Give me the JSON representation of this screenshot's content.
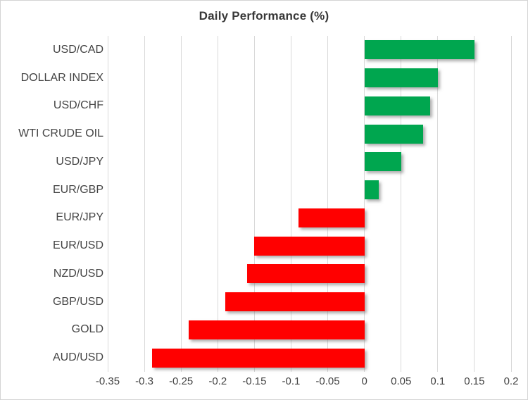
{
  "title": "Daily Performance (%)",
  "colors": {
    "positive_bar": "#00a64f",
    "negative_bar": "#ff0000",
    "gridline": "#d9d9d9",
    "text": "#444444",
    "frame_border": "#d4d4d4"
  },
  "chart_data": {
    "type": "bar",
    "orientation": "horizontal",
    "title": "Daily Performance (%)",
    "categories": [
      "USD/CAD",
      "DOLLAR INDEX",
      "USD/CHF",
      "WTI CRUDE OIL",
      "USD/JPY",
      "EUR/GBP",
      "EUR/JPY",
      "EUR/USD",
      "NZD/USD",
      "GBP/USD",
      "GOLD",
      "AUD/USD"
    ],
    "values": [
      0.15,
      0.1,
      0.09,
      0.08,
      0.05,
      0.02,
      -0.09,
      -0.15,
      -0.16,
      -0.19,
      -0.24,
      -0.29
    ],
    "xlim": [
      -0.35,
      0.2
    ],
    "xticks": [
      -0.35,
      -0.3,
      -0.25,
      -0.2,
      -0.15,
      -0.1,
      -0.05,
      0,
      0.05,
      0.1,
      0.15,
      0.2
    ],
    "xtick_labels": [
      "-0.35",
      "-0.3",
      "-0.25",
      "-0.2",
      "-0.15",
      "-0.1",
      "-0.05",
      "0",
      "0.05",
      "0.1",
      "0.15",
      "0.2"
    ],
    "grid": true,
    "legend": false,
    "xlabel": "",
    "ylabel": ""
  }
}
